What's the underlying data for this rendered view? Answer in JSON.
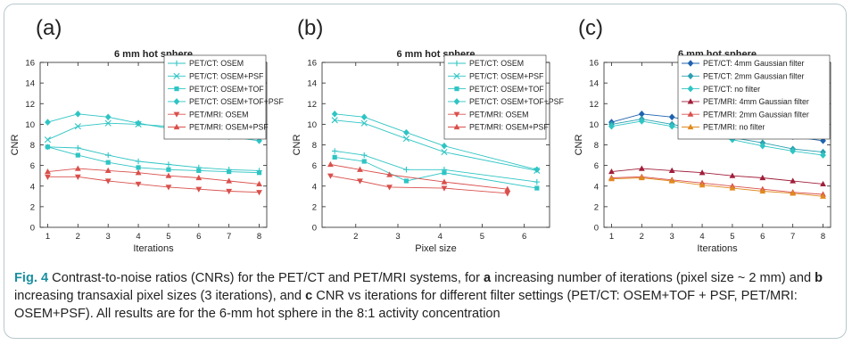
{
  "caption": {
    "label": "Fig. 4",
    "parts": [
      {
        "t": " Contrast-to-noise ratios (CNRs) for the PET/CT and PET/MRI systems, for ",
        "b": false
      },
      {
        "t": "a",
        "b": true
      },
      {
        "t": " increasing number of iterations (pixel size ~ 2 mm) and ",
        "b": false
      },
      {
        "t": "b",
        "b": true
      },
      {
        "t": " increasing transaxial pixel sizes (3 iterations), and ",
        "b": false
      },
      {
        "t": "c",
        "b": true
      },
      {
        "t": " CNR vs iterations for different filter settings (PET/CT: OSEM+TOF + PSF, PET/MRI: OSEM+PSF). All results are for the 6-mm hot sphere in the 8:1 activity concentration",
        "b": false
      }
    ]
  },
  "colors": {
    "cyan": "#2fc4c4",
    "red": "#d9504c",
    "blue": "#1f63b0",
    "teal": "#2aa0b0",
    "orange": "#e08a1e",
    "darkred": "#a01e3a"
  },
  "chart_data": [
    {
      "panel": "(a)",
      "type": "line",
      "title": "6 mm hot sphere",
      "xlabel": "Iterations",
      "ylabel": "CNR",
      "xlim": [
        0.75,
        8.25
      ],
      "ylim": [
        0,
        16
      ],
      "xticks": [
        1,
        2,
        3,
        4,
        5,
        6,
        7,
        8
      ],
      "yticks": [
        0,
        2,
        4,
        6,
        8,
        10,
        12,
        14,
        16
      ],
      "series": [
        {
          "name": "PET/CT: OSEM",
          "color": "#2fc4c4",
          "marker": "plus",
          "x": [
            1,
            2,
            3,
            4,
            5,
            6,
            7,
            8
          ],
          "y": [
            7.8,
            7.7,
            7.0,
            6.4,
            6.1,
            5.8,
            5.6,
            5.5
          ]
        },
        {
          "name": "PET/CT: OSEM+PSF",
          "color": "#2fc4c4",
          "marker": "x",
          "x": [
            1,
            2,
            3,
            4,
            5,
            6,
            7,
            8
          ],
          "y": [
            8.5,
            9.8,
            10.1,
            10.0,
            9.8,
            9.5,
            9.2,
            8.9
          ]
        },
        {
          "name": "PET/CT: OSEM+TOF",
          "color": "#2fc4c4",
          "marker": "square",
          "x": [
            1,
            2,
            3,
            4,
            5,
            6,
            7,
            8
          ],
          "y": [
            7.8,
            7.0,
            6.3,
            5.8,
            5.6,
            5.5,
            5.4,
            5.3
          ]
        },
        {
          "name": "PET/CT: OSEM+TOF+PSF",
          "color": "#2fc4c4",
          "marker": "diamond",
          "x": [
            1,
            2,
            3,
            4,
            5,
            6,
            7,
            8
          ],
          "y": [
            10.2,
            11.0,
            10.7,
            10.1,
            9.6,
            9.2,
            8.8,
            8.4
          ]
        },
        {
          "name": "PET/MRI: OSEM",
          "color": "#d9504c",
          "marker": "tridown",
          "x": [
            1,
            2,
            3,
            4,
            5,
            6,
            7,
            8
          ],
          "y": [
            4.9,
            4.9,
            4.5,
            4.2,
            3.9,
            3.7,
            3.5,
            3.4
          ]
        },
        {
          "name": "PET/MRI: OSEM+PSF",
          "color": "#d9504c",
          "marker": "triup",
          "x": [
            1,
            2,
            3,
            4,
            5,
            6,
            7,
            8
          ],
          "y": [
            5.4,
            5.7,
            5.5,
            5.3,
            5.0,
            4.8,
            4.5,
            4.2
          ]
        }
      ]
    },
    {
      "panel": "(b)",
      "type": "line",
      "title": "6 mm hot sphere",
      "xlabel": "Pixel size",
      "ylabel": "CNR",
      "xlim": [
        1.2,
        6.6
      ],
      "ylim": [
        0,
        16
      ],
      "xticks": [
        2,
        3,
        4,
        5,
        6
      ],
      "yticks": [
        0,
        2,
        4,
        6,
        8,
        10,
        12,
        14,
        16
      ],
      "series": [
        {
          "name": "PET/CT: OSEM",
          "color": "#2fc4c4",
          "marker": "plus",
          "x": [
            1.5,
            2.2,
            3.2,
            4.1,
            6.3
          ],
          "y": [
            7.4,
            7.0,
            5.6,
            5.6,
            4.4
          ]
        },
        {
          "name": "PET/CT: OSEM+PSF",
          "color": "#2fc4c4",
          "marker": "x",
          "x": [
            1.5,
            2.2,
            3.2,
            4.1,
            6.3
          ],
          "y": [
            10.4,
            10.1,
            8.6,
            7.3,
            5.5
          ]
        },
        {
          "name": "PET/CT: OSEM+TOF",
          "color": "#2fc4c4",
          "marker": "square",
          "x": [
            1.5,
            2.2,
            3.2,
            4.1,
            6.3
          ],
          "y": [
            6.8,
            6.4,
            4.5,
            5.3,
            3.8
          ]
        },
        {
          "name": "PET/CT: OSEM+TOF+PSF",
          "color": "#2fc4c4",
          "marker": "diamond",
          "x": [
            1.5,
            2.2,
            3.2,
            4.1,
            6.3
          ],
          "y": [
            11.0,
            10.7,
            9.2,
            7.9,
            5.6
          ]
        },
        {
          "name": "PET/MRI: OSEM",
          "color": "#d9504c",
          "marker": "tridown",
          "x": [
            1.4,
            2.1,
            2.8,
            4.1,
            5.6
          ],
          "y": [
            5.0,
            4.5,
            3.9,
            3.8,
            3.3
          ]
        },
        {
          "name": "PET/MRI: OSEM+PSF",
          "color": "#d9504c",
          "marker": "triup",
          "x": [
            1.4,
            2.1,
            2.8,
            4.1,
            5.6
          ],
          "y": [
            6.1,
            5.6,
            5.1,
            4.4,
            3.7
          ]
        }
      ]
    },
    {
      "panel": "(c)",
      "type": "line",
      "title": "6 mm hot sphere",
      "xlabel": "Iterations",
      "ylabel": "CNR",
      "xlim": [
        0.75,
        8.25
      ],
      "ylim": [
        0,
        16
      ],
      "xticks": [
        1,
        2,
        3,
        4,
        5,
        6,
        7,
        8
      ],
      "yticks": [
        0,
        2,
        4,
        6,
        8,
        10,
        12,
        14,
        16
      ],
      "series": [
        {
          "name": "PET/CT: 4mm Gaussian filter",
          "color": "#1f63b0",
          "marker": "diamond",
          "x": [
            1,
            2,
            3,
            4,
            5,
            6,
            7,
            8
          ],
          "y": [
            10.2,
            11.0,
            10.7,
            10.1,
            9.6,
            9.2,
            8.8,
            8.4
          ]
        },
        {
          "name": "PET/CT: 2mm Gaussian filter",
          "color": "#2aa0b0",
          "marker": "diamond",
          "x": [
            1,
            2,
            3,
            4,
            5,
            6,
            7,
            8
          ],
          "y": [
            10.0,
            10.5,
            10.0,
            9.4,
            8.7,
            8.2,
            7.6,
            7.3
          ]
        },
        {
          "name": "PET/CT: no filter",
          "color": "#2fc4c4",
          "marker": "diamond",
          "x": [
            1,
            2,
            3,
            4,
            5,
            6,
            7,
            8
          ],
          "y": [
            9.8,
            10.3,
            9.8,
            9.1,
            8.5,
            7.9,
            7.4,
            7.0
          ]
        },
        {
          "name": "PET/MRI: 4mm Gaussian filter",
          "color": "#a01e3a",
          "marker": "triup",
          "x": [
            1,
            2,
            3,
            4,
            5,
            6,
            7,
            8
          ],
          "y": [
            5.4,
            5.7,
            5.5,
            5.3,
            5.0,
            4.8,
            4.5,
            4.2
          ]
        },
        {
          "name": "PET/MRI: 2mm Gaussian filter",
          "color": "#d9504c",
          "marker": "triup",
          "x": [
            1,
            2,
            3,
            4,
            5,
            6,
            7,
            8
          ],
          "y": [
            4.8,
            4.9,
            4.6,
            4.3,
            4.0,
            3.7,
            3.4,
            3.2
          ]
        },
        {
          "name": "PET/MRI: no filter",
          "color": "#e08a1e",
          "marker": "triup",
          "x": [
            1,
            2,
            3,
            4,
            5,
            6,
            7,
            8
          ],
          "y": [
            4.7,
            4.8,
            4.5,
            4.1,
            3.8,
            3.5,
            3.3,
            3.0
          ]
        }
      ]
    }
  ]
}
